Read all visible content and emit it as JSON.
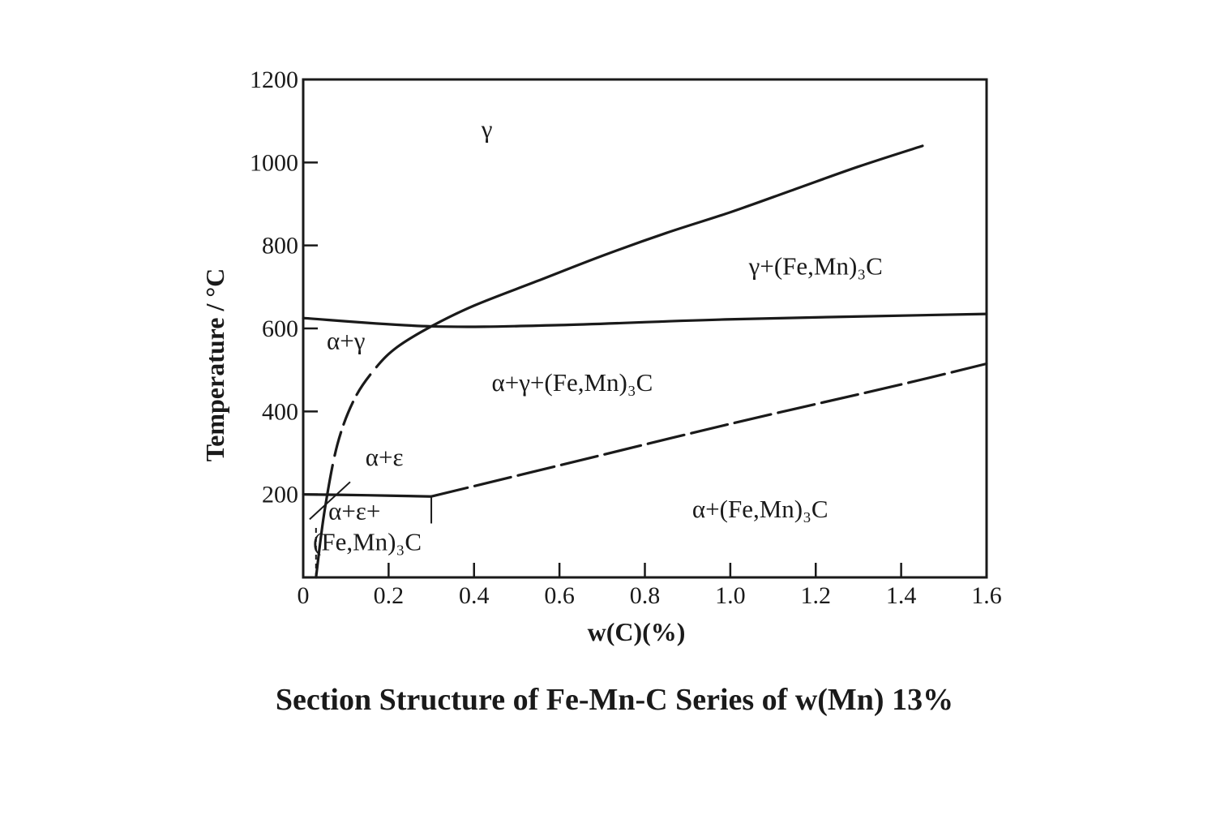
{
  "caption": "Section Structure of Fe-Mn-C Series of w(Mn) 13%",
  "chart_data": {
    "type": "line",
    "title": "",
    "xlabel": "w(C)(%)",
    "ylabel": "Temperature / °C",
    "xlim": [
      0,
      1.6
    ],
    "ylim": [
      0,
      1200
    ],
    "x_ticks": [
      0,
      0.2,
      0.4,
      0.6,
      0.8,
      1.0,
      1.2,
      1.4,
      1.6
    ],
    "x_tick_labels": [
      "0",
      "0.2",
      "0.4",
      "0.6",
      "0.8",
      "1.0",
      "1.2",
      "1.4",
      "1.6"
    ],
    "y_ticks": [
      200,
      400,
      600,
      800,
      1000,
      1200
    ],
    "y_tick_labels": [
      "200",
      "400",
      "600",
      "800",
      "1000",
      "1200"
    ],
    "grid": false,
    "series": [
      {
        "x": [
          0.03,
          0.05,
          0.08,
          0.12,
          0.17,
          0.22,
          0.3,
          0.4,
          0.55,
          0.7,
          0.85,
          1.0,
          1.15,
          1.3,
          1.45
        ],
        "y": [
          0,
          160,
          320,
          430,
          505,
          555,
          605,
          655,
          715,
          775,
          830,
          880,
          935,
          990,
          1040
        ],
        "dash": "mixed"
      },
      {
        "x": [
          0,
          0.3,
          0.6,
          1.0,
          1.6
        ],
        "y": [
          625,
          605,
          608,
          622,
          635
        ],
        "dash": "solid"
      },
      {
        "x": [
          0.3,
          0.6,
          1.0,
          1.4,
          1.6
        ],
        "y": [
          195,
          270,
          370,
          465,
          515
        ],
        "dash": "dashed"
      },
      {
        "x": [
          0,
          0.15,
          0.3
        ],
        "y": [
          200,
          198,
          195
        ],
        "dash": "solid"
      },
      {
        "x": [
          0.3,
          0.3
        ],
        "y": [
          195,
          130
        ],
        "dash": "solid"
      },
      {
        "x": [
          0.015,
          0.11
        ],
        "y": [
          140,
          230
        ],
        "dash": "solid"
      },
      {
        "x": [
          0.03,
          0.03
        ],
        "y": [
          0,
          120
        ],
        "dash": "dotted"
      }
    ],
    "regions": [
      {
        "label": "γ",
        "x": 0.43,
        "y": 1060
      },
      {
        "label": "γ+(Fe,Mn)₃C",
        "x": 1.2,
        "y": 730
      },
      {
        "label": "α+γ",
        "x": 0.1,
        "y": 550
      },
      {
        "label": "α+γ+(Fe,Mn)₃C",
        "x": 0.63,
        "y": 450
      },
      {
        "label": "α+ε",
        "x": 0.19,
        "y": 270
      },
      {
        "label": "α+ε+",
        "x": 0.12,
        "y": 140
      },
      {
        "label": "(Fe,Mn)₃C",
        "x": 0.15,
        "y": 65
      },
      {
        "label": "α+(Fe,Mn)₃C",
        "x": 1.07,
        "y": 145
      }
    ]
  }
}
